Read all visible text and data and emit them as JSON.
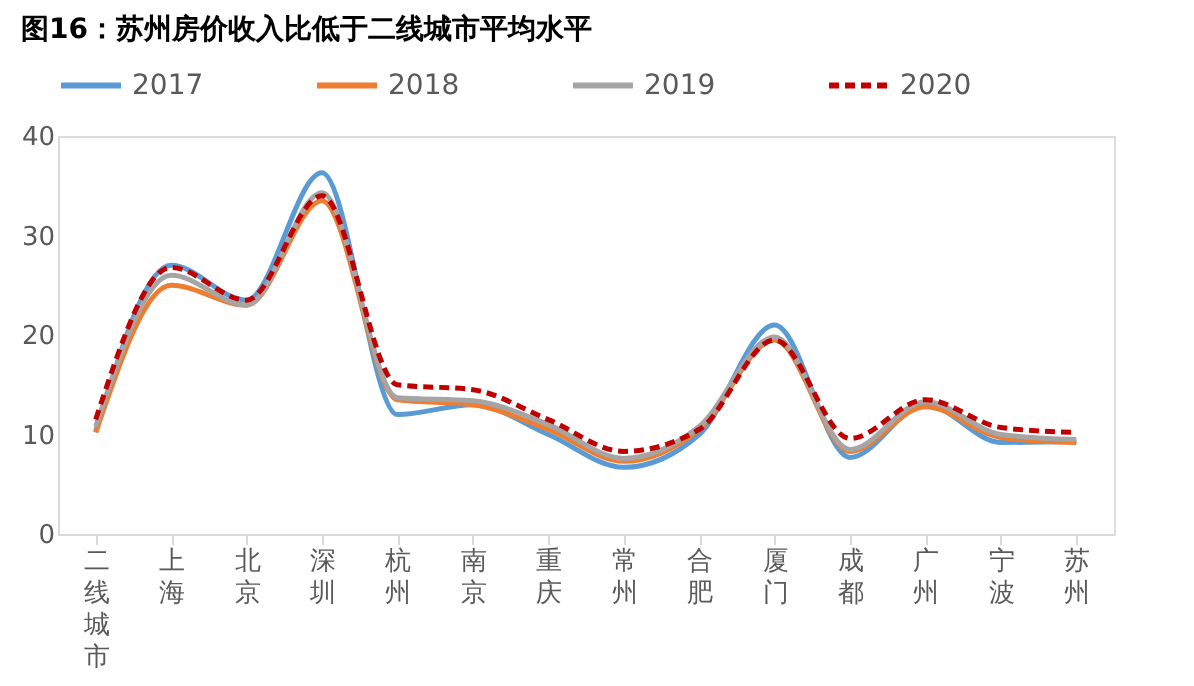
{
  "chart_data": {
    "type": "line",
    "title": "图16：苏州房价收入比低于二线城市平均水平",
    "categories": [
      "二线城市",
      "上海",
      "北京",
      "深圳",
      "杭州",
      "南京",
      "重庆",
      "常州",
      "合肥",
      "厦门",
      "成都",
      "广州",
      "宁波",
      "苏州"
    ],
    "series": [
      {
        "name": "2017",
        "color": "#5b9bd5",
        "values": [
          10.3,
          27,
          23.5,
          36.3,
          12,
          13,
          10,
          6.7,
          10,
          21,
          7.7,
          13,
          9.2,
          9.3
        ]
      },
      {
        "name": "2018",
        "color": "#ed7d31",
        "values": [
          10.2,
          25,
          23,
          33.5,
          13.5,
          13,
          10.5,
          7.3,
          10.5,
          19.5,
          8.3,
          12.8,
          9.7,
          9.2
        ]
      },
      {
        "name": "2019",
        "color": "#a5a5a5",
        "values": [
          10.8,
          26,
          23,
          34.3,
          13.7,
          13.4,
          11,
          7.6,
          10.8,
          19.8,
          8.5,
          13.3,
          10,
          9.5
        ]
      },
      {
        "name": "2020",
        "color": "#c00000",
        "line_style": "dashed",
        "values": [
          11.5,
          26.8,
          23.5,
          34,
          15,
          14.5,
          11.5,
          8.3,
          10.5,
          19.5,
          9.6,
          13.5,
          10.7,
          10.2
        ]
      }
    ],
    "ylim": [
      0,
      40
    ],
    "yticks": [
      0,
      10,
      20,
      30,
      40
    ],
    "grid": false,
    "legend": "top",
    "marker": "none",
    "line_style": "solid"
  }
}
